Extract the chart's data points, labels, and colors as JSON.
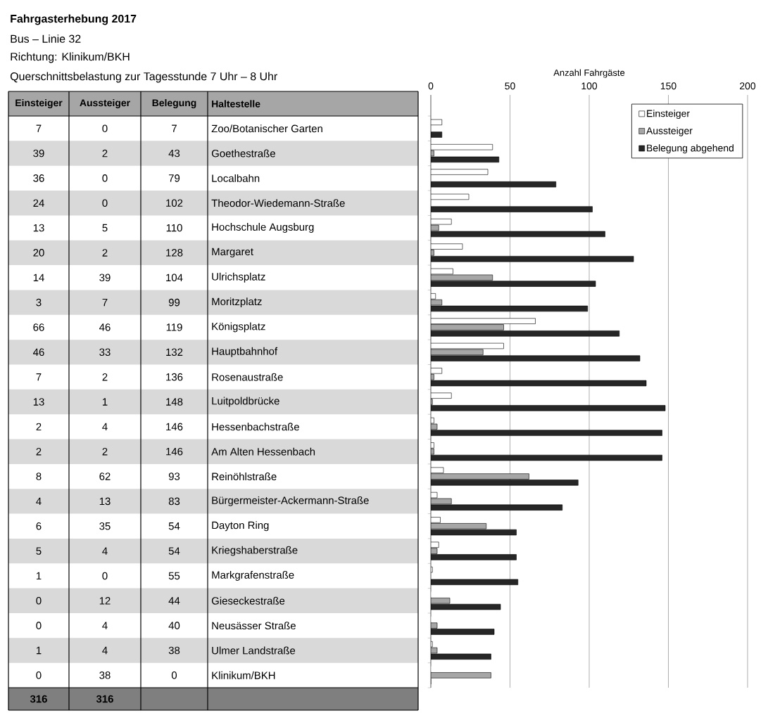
{
  "chart_data": {
    "type": "bar",
    "orientation": "horizontal",
    "title": "Fahrgasterhebung 2017",
    "subtitle": "Bus – Linie 32",
    "annotations": [
      "Richtung: Klinikum/BKH",
      "Querschnittsbelastung zur Tagesstunde 7 Uhr – 8 Uhr",
      "Belegung",
      "Haltestelle",
      "316",
      "316"
    ],
    "xlabel": "Anzahl Fahrgäste",
    "categories": [
      "Zoo/Botanischer Garten",
      "Goethestraße",
      "Localbahn",
      "Theodor-Wiedemann-Straße",
      "Hochschule Augsburg",
      "Margaret",
      "Ulrichsplatz",
      "Moritzplatz",
      "Königsplatz",
      "Hauptbahnhof",
      "Rosenaustraße",
      "Luitpoldbrücke",
      "Hessenbachstraße",
      "Am Alten Hessenbach",
      "Reinöhlstraße",
      "Bürgermeister-Ackermann-Straße",
      "Dayton Ring",
      "Kriegshaberstraße",
      "Markgrafenstraße",
      "Gieseckestraße",
      "Neusässer Straße",
      "Ulmer Landstraße",
      "Klinikum/BKH"
    ],
    "series": [
      {
        "name": "Einsteiger",
        "color": "#ffffff",
        "values": [
          7,
          39,
          36,
          24,
          13,
          20,
          14,
          3,
          66,
          46,
          7,
          13,
          2,
          2,
          8,
          4,
          6,
          5,
          1,
          0,
          0,
          1,
          0
        ]
      },
      {
        "name": "Aussteiger",
        "color": "#a6a6a6",
        "values": [
          0,
          2,
          0,
          0,
          5,
          2,
          39,
          7,
          46,
          33,
          2,
          1,
          4,
          2,
          62,
          13,
          35,
          4,
          0,
          12,
          4,
          4,
          38
        ]
      },
      {
        "name": "Belegung abgehend",
        "color": "#262626",
        "values": [
          7,
          43,
          79,
          102,
          110,
          128,
          104,
          99,
          119,
          132,
          136,
          148,
          146,
          146,
          93,
          83,
          54,
          54,
          55,
          44,
          40,
          38,
          0
        ]
      }
    ],
    "xlim": [
      0,
      200
    ],
    "xticks": [
      0,
      50,
      100,
      150,
      200
    ],
    "grid": "x",
    "legend": "top right",
    "data_labels": true
  }
}
